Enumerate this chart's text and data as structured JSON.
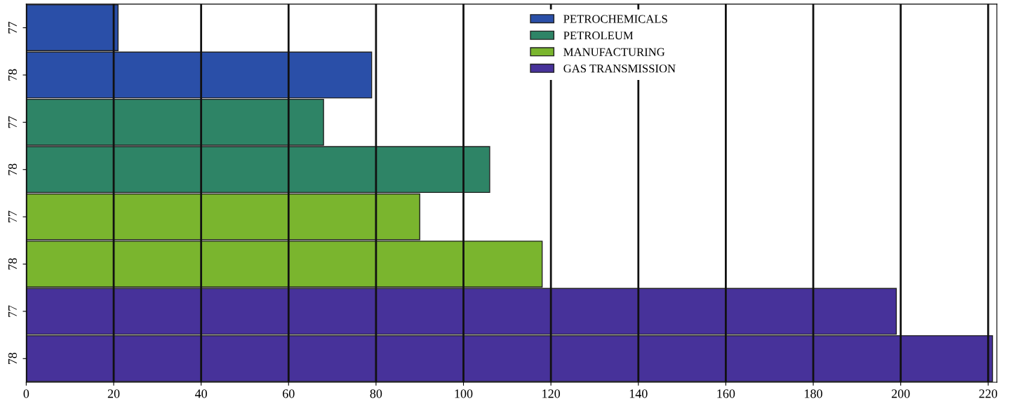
{
  "chart_data": {
    "type": "bar",
    "orientation": "horizontal",
    "categories": [
      "77",
      "78",
      "77",
      "78",
      "77",
      "78",
      "77",
      "78"
    ],
    "series": [
      {
        "name": "PETROCHEMICALS",
        "color": "#2a4fa8",
        "values": [
          21,
          79,
          null,
          null,
          null,
          null,
          null,
          null
        ]
      },
      {
        "name": "PETROLEUM",
        "color": "#2e8466",
        "values": [
          null,
          null,
          68,
          106,
          null,
          null,
          null,
          null
        ]
      },
      {
        "name": "MANUFACTURING",
        "color": "#7ab52e",
        "values": [
          null,
          null,
          null,
          null,
          90,
          118,
          null,
          null
        ]
      },
      {
        "name": "GAS TRANSMISSION",
        "color": "#47329a",
        "values": [
          null,
          null,
          null,
          null,
          null,
          null,
          199,
          221
        ]
      }
    ],
    "xlim": [
      0,
      222
    ],
    "xticks": [
      0,
      20,
      40,
      60,
      80,
      100,
      120,
      140,
      160,
      180,
      200,
      220
    ],
    "grid": "x",
    "legend": "top right"
  }
}
